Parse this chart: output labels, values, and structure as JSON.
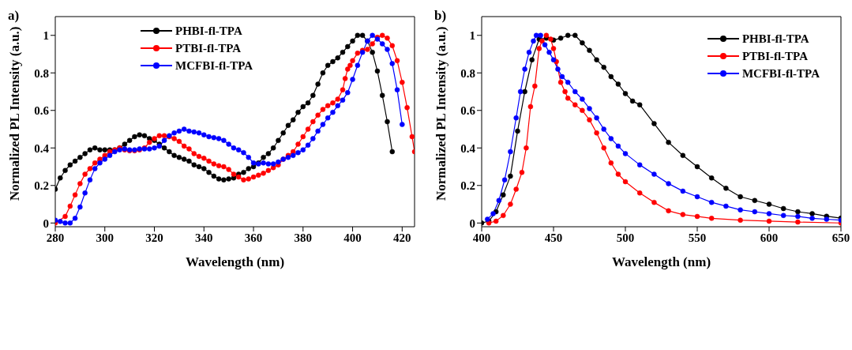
{
  "chart_data": [
    {
      "type": "line",
      "xlabel": "Wavelength (nm)",
      "ylabel": "Normalized PL Intensity (a.u.)",
      "annotations": [
        "a)"
      ],
      "xlim": [
        280,
        425
      ],
      "xticks": [
        280,
        300,
        320,
        340,
        360,
        380,
        400,
        420
      ],
      "ylim": [
        -0.02,
        1.1
      ],
      "yticks": [
        0,
        0.2,
        0.4,
        0.6,
        0.8,
        1
      ],
      "legend": "top",
      "marker": "circle",
      "line_style": "solid",
      "series": [
        {
          "name": "PHBI-fl-TPA",
          "color": "#000000",
          "x": [
            280,
            282,
            284,
            286,
            288,
            290,
            292,
            294,
            296,
            298,
            300,
            302,
            304,
            306,
            308,
            310,
            312,
            314,
            316,
            318,
            320,
            322,
            324,
            326,
            328,
            330,
            332,
            334,
            336,
            338,
            340,
            342,
            344,
            346,
            348,
            350,
            352,
            354,
            356,
            358,
            360,
            362,
            364,
            366,
            368,
            370,
            372,
            374,
            376,
            378,
            380,
            382,
            384,
            386,
            388,
            390,
            392,
            394,
            396,
            398,
            400,
            402,
            404,
            406,
            408,
            410,
            412,
            414,
            416
          ],
          "values": [
            0.18,
            0.24,
            0.28,
            0.31,
            0.33,
            0.35,
            0.37,
            0.39,
            0.4,
            0.39,
            0.39,
            0.39,
            0.39,
            0.4,
            0.42,
            0.44,
            0.46,
            0.47,
            0.465,
            0.45,
            0.44,
            0.42,
            0.4,
            0.38,
            0.36,
            0.35,
            0.34,
            0.33,
            0.31,
            0.3,
            0.29,
            0.27,
            0.25,
            0.235,
            0.23,
            0.235,
            0.24,
            0.26,
            0.27,
            0.29,
            0.3,
            0.32,
            0.35,
            0.37,
            0.4,
            0.44,
            0.48,
            0.52,
            0.55,
            0.59,
            0.62,
            0.64,
            0.68,
            0.74,
            0.8,
            0.84,
            0.86,
            0.88,
            0.91,
            0.94,
            0.97,
            1.0,
            1.0,
            0.97,
            0.91,
            0.81,
            0.68,
            0.54,
            0.38
          ]
        },
        {
          "name": "PTBI-fl-TPA",
          "color": "#ff0000",
          "x": [
            280,
            284,
            286,
            288,
            290,
            292,
            294,
            296,
            298,
            300,
            302,
            304,
            306,
            308,
            310,
            312,
            314,
            316,
            318,
            320,
            322,
            324,
            326,
            328,
            330,
            332,
            334,
            336,
            338,
            340,
            342,
            344,
            346,
            348,
            350,
            352,
            354,
            356,
            358,
            360,
            362,
            364,
            366,
            368,
            370,
            372,
            374,
            376,
            378,
            380,
            382,
            384,
            386,
            388,
            390,
            392,
            394,
            396,
            397,
            398,
            399,
            400,
            402,
            404,
            406,
            408,
            410,
            412,
            414,
            416,
            418,
            420,
            422,
            424,
            425
          ],
          "values": [
            0.0,
            0.035,
            0.09,
            0.15,
            0.21,
            0.26,
            0.29,
            0.32,
            0.34,
            0.36,
            0.38,
            0.39,
            0.4,
            0.39,
            0.385,
            0.385,
            0.39,
            0.4,
            0.43,
            0.45,
            0.465,
            0.465,
            0.46,
            0.45,
            0.435,
            0.41,
            0.395,
            0.37,
            0.355,
            0.345,
            0.33,
            0.315,
            0.305,
            0.3,
            0.285,
            0.26,
            0.245,
            0.23,
            0.235,
            0.245,
            0.255,
            0.265,
            0.28,
            0.295,
            0.31,
            0.34,
            0.36,
            0.38,
            0.42,
            0.46,
            0.5,
            0.54,
            0.575,
            0.605,
            0.625,
            0.64,
            0.66,
            0.71,
            0.77,
            0.82,
            0.84,
            0.865,
            0.905,
            0.92,
            0.925,
            0.955,
            0.99,
            1.0,
            0.985,
            0.945,
            0.865,
            0.75,
            0.615,
            0.46,
            0.38
          ]
        },
        {
          "name": "MCFBI-fl-TPA",
          "color": "#0000ff",
          "x": [
            280,
            282,
            284,
            286,
            288,
            290,
            292,
            294,
            296,
            298,
            300,
            302,
            304,
            306,
            308,
            310,
            312,
            314,
            316,
            318,
            320,
            322,
            324,
            326,
            328,
            330,
            332,
            334,
            336,
            338,
            340,
            342,
            344,
            346,
            348,
            350,
            352,
            354,
            356,
            358,
            360,
            362,
            364,
            366,
            368,
            370,
            372,
            374,
            376,
            378,
            380,
            382,
            384,
            386,
            388,
            390,
            392,
            394,
            396,
            398,
            400,
            402,
            404,
            406,
            408,
            410,
            412,
            414,
            416,
            418,
            420
          ],
          "values": [
            0.015,
            0.008,
            0.0,
            0.0,
            0.025,
            0.085,
            0.16,
            0.23,
            0.29,
            0.32,
            0.34,
            0.36,
            0.38,
            0.39,
            0.395,
            0.39,
            0.39,
            0.395,
            0.395,
            0.395,
            0.4,
            0.41,
            0.44,
            0.465,
            0.48,
            0.49,
            0.5,
            0.49,
            0.485,
            0.48,
            0.47,
            0.46,
            0.455,
            0.45,
            0.44,
            0.42,
            0.4,
            0.39,
            0.375,
            0.35,
            0.32,
            0.315,
            0.32,
            0.315,
            0.315,
            0.325,
            0.34,
            0.35,
            0.36,
            0.375,
            0.39,
            0.415,
            0.45,
            0.49,
            0.525,
            0.56,
            0.59,
            0.625,
            0.655,
            0.695,
            0.765,
            0.84,
            0.91,
            0.97,
            1.0,
            0.98,
            0.955,
            0.925,
            0.85,
            0.71,
            0.525
          ]
        }
      ]
    },
    {
      "type": "line",
      "xlabel": "Wavelength (nm)",
      "ylabel": "Normalized PL Intensity (a.u.)",
      "annotations": [
        "b)"
      ],
      "xlim": [
        400,
        650
      ],
      "xticks": [
        400,
        450,
        500,
        550,
        600,
        650
      ],
      "ylim": [
        -0.02,
        1.1
      ],
      "yticks": [
        0,
        0.2,
        0.4,
        0.6,
        0.8,
        1
      ],
      "legend": "top right",
      "marker": "circle",
      "line_style": "solid",
      "series": [
        {
          "name": "PHBI-fl-TPA",
          "color": "#000000",
          "x": [
            400,
            405,
            410,
            415,
            420,
            425,
            430,
            435,
            440,
            445,
            450,
            455,
            460,
            465,
            470,
            475,
            480,
            485,
            490,
            495,
            500,
            505,
            510,
            520,
            530,
            540,
            550,
            560,
            570,
            580,
            590,
            600,
            610,
            620,
            630,
            640,
            650
          ],
          "values": [
            0.0,
            0.01,
            0.06,
            0.15,
            0.25,
            0.49,
            0.7,
            0.87,
            0.98,
            0.985,
            0.975,
            0.985,
            1.0,
            1.0,
            0.96,
            0.92,
            0.87,
            0.83,
            0.78,
            0.74,
            0.69,
            0.65,
            0.63,
            0.53,
            0.43,
            0.36,
            0.3,
            0.24,
            0.185,
            0.14,
            0.12,
            0.1,
            0.077,
            0.06,
            0.05,
            0.036,
            0.026
          ]
        },
        {
          "name": "PTBI-fl-TPA",
          "color": "#ff0000",
          "x": [
            405,
            410,
            415,
            420,
            424,
            428,
            431,
            434,
            437,
            440,
            442,
            445,
            448,
            450,
            452,
            455,
            458,
            460,
            465,
            470,
            475,
            480,
            485,
            490,
            495,
            500,
            510,
            520,
            530,
            540,
            550,
            560,
            580,
            600,
            620,
            650
          ],
          "values": [
            0.0,
            0.01,
            0.04,
            0.1,
            0.18,
            0.27,
            0.4,
            0.62,
            0.73,
            0.93,
            0.97,
            1.0,
            0.98,
            0.93,
            0.86,
            0.75,
            0.7,
            0.665,
            0.63,
            0.6,
            0.55,
            0.48,
            0.4,
            0.32,
            0.26,
            0.22,
            0.16,
            0.11,
            0.065,
            0.045,
            0.035,
            0.025,
            0.015,
            0.01,
            0.005,
            0.0
          ]
        },
        {
          "name": "MCFBI-fl-TPA",
          "color": "#0000ff",
          "x": [
            404,
            408,
            412,
            416,
            420,
            424,
            427,
            430,
            433,
            436,
            438,
            441,
            444,
            447,
            450,
            453,
            456,
            460,
            465,
            470,
            475,
            480,
            485,
            490,
            495,
            500,
            510,
            520,
            530,
            540,
            550,
            560,
            570,
            580,
            590,
            600,
            610,
            620,
            630,
            640,
            650
          ],
          "values": [
            0.02,
            0.05,
            0.12,
            0.23,
            0.38,
            0.56,
            0.7,
            0.82,
            0.91,
            0.97,
            1.0,
            1.0,
            0.95,
            0.91,
            0.87,
            0.82,
            0.78,
            0.75,
            0.7,
            0.66,
            0.61,
            0.56,
            0.5,
            0.45,
            0.41,
            0.37,
            0.31,
            0.26,
            0.21,
            0.17,
            0.14,
            0.11,
            0.09,
            0.07,
            0.06,
            0.05,
            0.04,
            0.035,
            0.025,
            0.02,
            0.015
          ]
        }
      ]
    }
  ]
}
